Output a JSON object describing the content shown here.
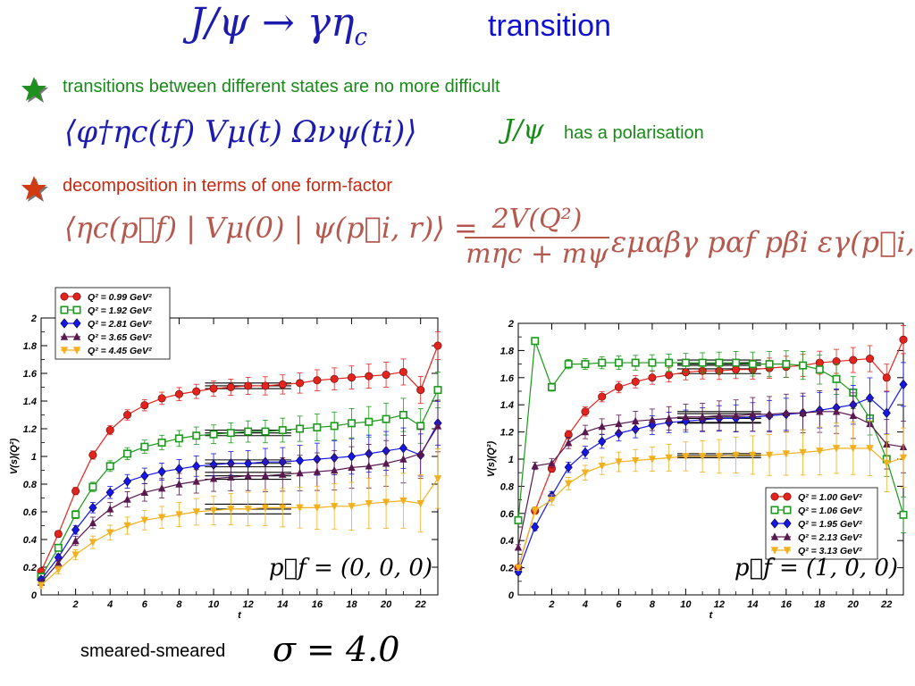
{
  "title": {
    "math": "J/ψ → γη",
    "math_sub": "c",
    "text": "transition"
  },
  "bullets": [
    {
      "text": "transitions between different states are no more difficult",
      "star_color": "#1f8f1f"
    },
    {
      "text": "decomposition in terms of one form-factor",
      "star_color": "#d23a12"
    }
  ],
  "equations": {
    "correlator": "⟨φ†ηc(tf) Vμ(t) Ωνψ(ti)⟩",
    "jpsi_note_math": "J/ψ",
    "jpsi_note_text": "has a polarisation",
    "matrix_element_lhs": "⟨ηc(p⃗f) | Vμ(0) | ψ(p⃗i, r)⟩ =",
    "fraction_numerator": "2V(Q²)",
    "fraction_denominator": "mηc + mψ",
    "matrix_element_rhs": "εμαβγ pαf pβi εγ(p⃗i, r)"
  },
  "bottom": {
    "label": "smeared-smeared",
    "sigma": "σ = 4.0"
  },
  "colors": {
    "red": "#e3241e",
    "green": "#1a9a1a",
    "blue": "#1616e6",
    "purple": "#5a1850",
    "orange": "#f2b01e"
  },
  "chart_data": [
    {
      "type": "line",
      "xlabel": "t",
      "ylabel": "V(s)(Q²)",
      "xlim": [
        0,
        23
      ],
      "ylim": [
        0,
        2
      ],
      "xticks": [
        2,
        4,
        6,
        8,
        10,
        12,
        14,
        16,
        18,
        20,
        22
      ],
      "yticks": [
        0,
        0.2,
        0.4,
        0.6,
        0.8,
        1,
        1.2,
        1.4,
        1.6,
        1.8,
        2
      ],
      "legend_position": "top-left",
      "annotation": "p⃗f = (0, 0, 0)",
      "x": [
        0,
        1,
        2,
        3,
        4,
        5,
        6,
        7,
        8,
        9,
        10,
        11,
        12,
        13,
        14,
        15,
        16,
        17,
        18,
        19,
        20,
        21,
        22,
        23
      ],
      "series": [
        {
          "name": "Q² = 0.99 GeV²",
          "color": "#e3241e",
          "marker": "circle",
          "values": [
            0.17,
            0.44,
            0.75,
            1.01,
            1.19,
            1.3,
            1.37,
            1.42,
            1.45,
            1.47,
            1.49,
            1.5,
            1.51,
            1.51,
            1.52,
            1.53,
            1.55,
            1.56,
            1.57,
            1.58,
            1.59,
            1.61,
            1.48,
            1.8
          ],
          "fit": {
            "y": 1.51,
            "band": 0.02,
            "t_range": [
              9.5,
              14.5
            ]
          }
        },
        {
          "name": "Q² = 1.92 GeV²",
          "color": "#1a9a1a",
          "marker": "square-open",
          "values": [
            0.13,
            0.34,
            0.58,
            0.78,
            0.93,
            1.02,
            1.07,
            1.1,
            1.13,
            1.15,
            1.16,
            1.17,
            1.18,
            1.18,
            1.19,
            1.2,
            1.21,
            1.22,
            1.24,
            1.25,
            1.27,
            1.3,
            1.22,
            1.48
          ],
          "fit": {
            "y": 1.17,
            "band": 0.02,
            "t_range": [
              9.5,
              14.5
            ]
          }
        },
        {
          "name": "Q² = 2.81 GeV²",
          "color": "#1616e6",
          "marker": "diamond",
          "values": [
            0.11,
            0.27,
            0.47,
            0.63,
            0.74,
            0.82,
            0.86,
            0.89,
            0.91,
            0.93,
            0.94,
            0.95,
            0.95,
            0.96,
            0.96,
            0.97,
            0.98,
            0.99,
            1.0,
            1.02,
            1.04,
            1.06,
            1.01,
            1.24
          ],
          "fit": {
            "y": 0.95,
            "band": 0.025,
            "t_range": [
              9.5,
              14.5
            ]
          }
        },
        {
          "name": "Q² = 3.65 GeV²",
          "color": "#5a1850",
          "marker": "triangle-up",
          "values": [
            0.09,
            0.23,
            0.39,
            0.52,
            0.62,
            0.69,
            0.74,
            0.77,
            0.8,
            0.82,
            0.84,
            0.85,
            0.86,
            0.86,
            0.87,
            0.88,
            0.89,
            0.9,
            0.92,
            0.93,
            0.95,
            0.98,
            1.02,
            1.22
          ],
          "fit": {
            "y": 0.86,
            "band": 0.025,
            "t_range": [
              9.5,
              14.5
            ]
          }
        },
        {
          "name": "Q² = 4.45 GeV²",
          "color": "#f2b01e",
          "marker": "triangle-down",
          "values": [
            0.07,
            0.18,
            0.29,
            0.38,
            0.45,
            0.5,
            0.54,
            0.56,
            0.58,
            0.6,
            0.61,
            0.62,
            0.62,
            0.63,
            0.63,
            0.63,
            0.63,
            0.64,
            0.64,
            0.66,
            0.67,
            0.68,
            0.66,
            0.84
          ],
          "fit": {
            "y": 0.62,
            "band": 0.035,
            "t_range": [
              9.5,
              14.5
            ]
          }
        }
      ]
    },
    {
      "type": "line",
      "xlabel": "t",
      "ylabel": "V(s)(Q²)",
      "xlim": [
        0,
        23
      ],
      "ylim": [
        0,
        2
      ],
      "xticks": [
        2,
        4,
        6,
        8,
        10,
        12,
        14,
        16,
        18,
        20,
        22
      ],
      "yticks": [
        0,
        0.2,
        0.4,
        0.6,
        0.8,
        1,
        1.2,
        1.4,
        1.6,
        1.8,
        2
      ],
      "legend_position": "bottom-right",
      "annotation": "p⃗f = (1, 0, 0)",
      "x": [
        0,
        1,
        2,
        3,
        4,
        5,
        6,
        7,
        8,
        9,
        10,
        11,
        12,
        13,
        14,
        15,
        16,
        17,
        18,
        19,
        20,
        21,
        22,
        23
      ],
      "series": [
        {
          "name": "Q² = 1.00 GeV²",
          "color": "#e3241e",
          "marker": "circle",
          "values": [
            0.2,
            0.62,
            0.93,
            1.18,
            1.35,
            1.46,
            1.53,
            1.57,
            1.6,
            1.62,
            1.64,
            1.65,
            1.65,
            1.66,
            1.66,
            1.67,
            1.68,
            1.69,
            1.71,
            1.72,
            1.73,
            1.74,
            1.6,
            1.88
          ],
          "fit": {
            "y": 1.665,
            "band": 0.035,
            "t_range": [
              9.5,
              14.5
            ]
          }
        },
        {
          "name": "Q² = 1.06 GeV²",
          "color": "#1a9a1a",
          "marker": "square-open",
          "values": [
            0.55,
            1.87,
            1.53,
            1.7,
            1.7,
            1.71,
            1.71,
            1.71,
            1.71,
            1.71,
            1.71,
            1.71,
            1.71,
            1.71,
            1.7,
            1.7,
            1.7,
            1.69,
            1.66,
            1.59,
            1.49,
            1.3,
            1.0,
            0.59
          ],
          "fit": {
            "y": 1.71,
            "band": 0.02,
            "t_range": [
              9.5,
              14.5
            ]
          }
        },
        {
          "name": "Q² = 1.95 GeV²",
          "color": "#1616e6",
          "marker": "diamond",
          "values": [
            0.17,
            0.5,
            0.73,
            0.94,
            1.05,
            1.13,
            1.19,
            1.22,
            1.25,
            1.27,
            1.28,
            1.29,
            1.3,
            1.3,
            1.31,
            1.32,
            1.33,
            1.34,
            1.36,
            1.38,
            1.4,
            1.45,
            1.34,
            1.55
          ],
          "fit": {
            "y": 1.3,
            "band": 0.035,
            "t_range": [
              9.5,
              14.5
            ]
          }
        },
        {
          "name": "Q² = 2.13 GeV²",
          "color": "#5a1850",
          "marker": "triangle-up",
          "values": [
            0.35,
            0.95,
            0.97,
            1.12,
            1.2,
            1.24,
            1.26,
            1.28,
            1.29,
            1.3,
            1.31,
            1.31,
            1.32,
            1.32,
            1.33,
            1.33,
            1.34,
            1.34,
            1.35,
            1.35,
            1.32,
            1.26,
            1.11,
            1.09
          ],
          "fit": {
            "y": 1.31,
            "band": 0.04,
            "t_range": [
              9.5,
              14.5
            ]
          }
        },
        {
          "name": "Q² = 3.13 GeV²",
          "color": "#f2b01e",
          "marker": "triangle-down",
          "values": [
            0.2,
            0.62,
            0.7,
            0.82,
            0.9,
            0.95,
            0.98,
            0.99,
            1.0,
            1.01,
            1.02,
            1.02,
            1.02,
            1.03,
            1.03,
            1.03,
            1.04,
            1.05,
            1.06,
            1.08,
            1.08,
            1.08,
            0.97,
            1.01
          ],
          "fit": {
            "y": 1.025,
            "band": 0.015,
            "t_range": [
              9.5,
              14.5
            ]
          }
        }
      ]
    }
  ]
}
